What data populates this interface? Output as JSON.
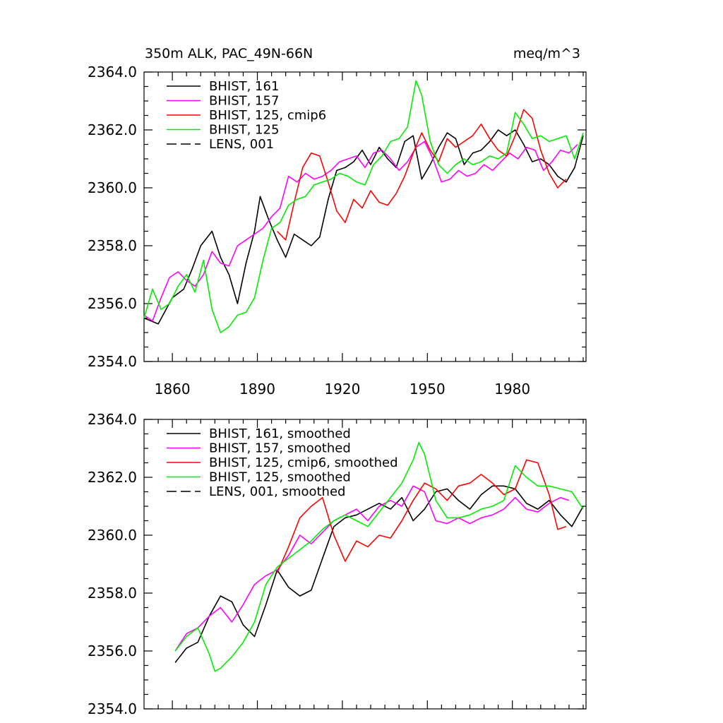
{
  "colors": {
    "black": "#000000",
    "magenta": "#ff00ff",
    "red": "#ff0000",
    "green": "#00ee00"
  },
  "chart_data": [
    {
      "type": "line",
      "title_left": "350m ALK, PAC_49N-66N",
      "title_right": "meq/m^3",
      "xlabel": "",
      "ylabel": "",
      "xlim": [
        1850,
        2006
      ],
      "ylim": [
        2354.0,
        2364.0
      ],
      "xticks": [
        1860,
        1890,
        1920,
        1950,
        1980
      ],
      "xtick_labels": [
        "1860",
        "1890",
        "1920",
        "1950",
        "1980"
      ],
      "yticks": [
        2354.0,
        2356.0,
        2358.0,
        2360.0,
        2362.0,
        2364.0
      ],
      "ytick_labels": [
        "2354.0",
        "2356.0",
        "2358.0",
        "2360.0",
        "2362.0",
        "2364.0"
      ],
      "legend_position": "top-left",
      "series": [
        {
          "name": "BHIST, 161",
          "color": "#000000",
          "dash": "solid",
          "x": [
            1850,
            1855,
            1860,
            1864,
            1867,
            1870,
            1874,
            1877,
            1880,
            1883,
            1886,
            1889,
            1891,
            1894,
            1897,
            1900,
            1903,
            1906,
            1909,
            1912,
            1915,
            1918,
            1921,
            1924,
            1927,
            1930,
            1933,
            1936,
            1939,
            1942,
            1945,
            1948,
            1951,
            1954,
            1957,
            1960,
            1963,
            1966,
            1969,
            1972,
            1975,
            1978,
            1981,
            1984,
            1987,
            1990,
            1993,
            1996,
            1999,
            2002,
            2005
          ],
          "values": [
            2355.5,
            2355.3,
            2356.2,
            2356.5,
            2357.2,
            2358.0,
            2358.5,
            2357.6,
            2357.0,
            2356.0,
            2357.4,
            2358.5,
            2359.7,
            2358.9,
            2358.2,
            2357.6,
            2358.4,
            2358.2,
            2358.0,
            2358.3,
            2359.6,
            2360.6,
            2360.7,
            2360.9,
            2361.3,
            2360.8,
            2361.4,
            2361.0,
            2360.7,
            2361.6,
            2361.8,
            2360.3,
            2360.8,
            2361.4,
            2361.9,
            2361.7,
            2360.8,
            2361.2,
            2361.3,
            2361.6,
            2362.0,
            2361.8,
            2362.0,
            2361.5,
            2360.9,
            2361.0,
            2360.8,
            2360.4,
            2360.2,
            2360.7,
            2361.8
          ]
        },
        {
          "name": "BHIST, 157",
          "color": "#ff00ff",
          "dash": "solid",
          "x": [
            1850,
            1853,
            1856,
            1859,
            1862,
            1865,
            1868,
            1871,
            1874,
            1877,
            1880,
            1883,
            1886,
            1889,
            1892,
            1895,
            1898,
            1901,
            1904,
            1907,
            1910,
            1913,
            1916,
            1919,
            1922,
            1925,
            1928,
            1931,
            1934,
            1937,
            1940,
            1943,
            1946,
            1949,
            1952,
            1955,
            1958,
            1961,
            1964,
            1967,
            1970,
            1973,
            1976,
            1979,
            1982,
            1985,
            1988,
            1991,
            1994,
            1997,
            2000,
            2003
          ],
          "values": [
            2355.6,
            2355.4,
            2356.2,
            2356.9,
            2357.1,
            2356.8,
            2356.6,
            2357.0,
            2357.8,
            2357.4,
            2357.3,
            2358.0,
            2358.2,
            2358.4,
            2358.6,
            2359.0,
            2359.3,
            2360.4,
            2360.2,
            2360.5,
            2360.3,
            2360.4,
            2360.6,
            2360.9,
            2361.0,
            2361.1,
            2360.7,
            2361.2,
            2361.3,
            2361.0,
            2360.6,
            2360.9,
            2361.4,
            2361.6,
            2361.0,
            2360.2,
            2360.3,
            2360.6,
            2360.4,
            2360.5,
            2360.8,
            2360.6,
            2360.9,
            2361.2,
            2361.0,
            2361.4,
            2361.3,
            2360.6,
            2360.9,
            2361.3,
            2361.2,
            2361.5
          ]
        },
        {
          "name": "BHIST, 125, cmip6",
          "color": "#ff0000",
          "dash": "solid",
          "x": [
            1897,
            1900,
            1903,
            1906,
            1909,
            1912,
            1915,
            1918,
            1921,
            1924,
            1927,
            1930,
            1933,
            1936,
            1939,
            1942,
            1945,
            1948,
            1951,
            1954,
            1957,
            1960,
            1963,
            1966,
            1969,
            1972,
            1975,
            1978,
            1981,
            1984,
            1987,
            1990,
            1993,
            1996,
            1999
          ],
          "values": [
            2358.5,
            2358.2,
            2359.5,
            2360.7,
            2361.2,
            2361.1,
            2360.2,
            2359.2,
            2358.8,
            2359.6,
            2359.3,
            2359.9,
            2359.5,
            2359.4,
            2359.8,
            2360.4,
            2361.2,
            2361.9,
            2361.3,
            2360.9,
            2361.7,
            2361.4,
            2361.6,
            2361.8,
            2362.2,
            2361.7,
            2361.3,
            2361.1,
            2361.8,
            2362.7,
            2362.4,
            2361.3,
            2360.5,
            2360.0,
            2360.3
          ]
        },
        {
          "name": "BHIST, 125",
          "color": "#00ee00",
          "dash": "solid",
          "x": [
            1850,
            1853,
            1856,
            1859,
            1862,
            1865,
            1868,
            1871,
            1874,
            1877,
            1880,
            1883,
            1886,
            1889,
            1892,
            1895,
            1898,
            1901,
            1904,
            1907,
            1910,
            1913,
            1916,
            1919,
            1922,
            1925,
            1928,
            1931,
            1934,
            1937,
            1940,
            1943,
            1946,
            1948,
            1951,
            1954,
            1957,
            1960,
            1963,
            1966,
            1969,
            1972,
            1975,
            1978,
            1981,
            1984,
            1987,
            1990,
            1993,
            1996,
            1999,
            2002,
            2005
          ],
          "values": [
            2355.5,
            2356.5,
            2355.8,
            2356.0,
            2356.6,
            2357.0,
            2356.4,
            2357.5,
            2355.8,
            2355.0,
            2355.2,
            2355.6,
            2355.7,
            2356.2,
            2357.5,
            2358.6,
            2358.8,
            2359.4,
            2359.6,
            2359.7,
            2360.1,
            2360.2,
            2360.3,
            2360.5,
            2360.4,
            2360.2,
            2360.1,
            2360.8,
            2361.1,
            2361.6,
            2361.7,
            2362.1,
            2363.7,
            2363.2,
            2361.6,
            2360.8,
            2360.5,
            2360.8,
            2361.0,
            2360.8,
            2360.9,
            2361.1,
            2361.0,
            2361.2,
            2362.6,
            2362.2,
            2361.7,
            2361.8,
            2361.6,
            2361.7,
            2361.8,
            2361.0,
            2361.9
          ]
        }
      ]
    },
    {
      "type": "line",
      "xlabel": "",
      "ylabel": "",
      "xlim": [
        1850,
        2006
      ],
      "ylim": [
        2354.0,
        2364.0
      ],
      "xticks": [
        1860,
        1890,
        1920,
        1950,
        1980
      ],
      "yticks": [
        2354.0,
        2356.0,
        2358.0,
        2360.0,
        2362.0,
        2364.0
      ],
      "ytick_labels": [
        "2354.0",
        "2356.0",
        "2358.0",
        "2360.0",
        "2362.0",
        "2364.0"
      ],
      "legend_position": "top-left",
      "series": [
        {
          "name": "BHIST, 161, smoothed",
          "color": "#000000",
          "dash": "solid",
          "x": [
            1861,
            1865,
            1869,
            1873,
            1877,
            1881,
            1885,
            1889,
            1893,
            1897,
            1901,
            1905,
            1909,
            1913,
            1917,
            1921,
            1925,
            1929,
            1933,
            1937,
            1941,
            1945,
            1949,
            1953,
            1957,
            1961,
            1965,
            1969,
            1973,
            1977,
            1981,
            1985,
            1989,
            1993,
            1997,
            2001,
            2005
          ],
          "values": [
            2355.6,
            2356.1,
            2356.3,
            2357.2,
            2357.9,
            2357.7,
            2356.9,
            2356.5,
            2357.6,
            2358.8,
            2358.2,
            2357.9,
            2358.1,
            2359.2,
            2360.3,
            2360.6,
            2360.7,
            2360.9,
            2361.1,
            2360.9,
            2361.3,
            2360.5,
            2360.9,
            2361.5,
            2361.6,
            2361.2,
            2360.9,
            2361.4,
            2361.7,
            2361.7,
            2361.6,
            2361.1,
            2360.9,
            2361.2,
            2360.7,
            2360.3,
            2361.0
          ]
        },
        {
          "name": "BHIST, 157, smoothed",
          "color": "#ff00ff",
          "dash": "solid",
          "x": [
            1861,
            1865,
            1869,
            1873,
            1877,
            1881,
            1885,
            1889,
            1893,
            1897,
            1901,
            1905,
            1909,
            1913,
            1917,
            1921,
            1925,
            1929,
            1933,
            1937,
            1941,
            1945,
            1949,
            1953,
            1957,
            1961,
            1965,
            1969,
            1973,
            1977,
            1981,
            1985,
            1989,
            1993,
            1997,
            2000
          ],
          "values": [
            2356.0,
            2356.6,
            2356.8,
            2357.2,
            2357.5,
            2357.0,
            2357.6,
            2358.3,
            2358.6,
            2358.8,
            2359.3,
            2360.0,
            2359.7,
            2360.1,
            2360.5,
            2360.7,
            2360.9,
            2360.5,
            2361.0,
            2361.2,
            2361.0,
            2361.7,
            2361.5,
            2360.5,
            2360.4,
            2360.6,
            2360.4,
            2360.6,
            2360.7,
            2360.9,
            2361.3,
            2360.9,
            2360.8,
            2361.1,
            2361.3,
            2361.2
          ]
        },
        {
          "name": "BHIST, 125, cmip6, smoothed",
          "color": "#ff0000",
          "dash": "solid",
          "x": [
            1897,
            1901,
            1905,
            1909,
            1913,
            1917,
            1921,
            1925,
            1929,
            1933,
            1937,
            1941,
            1945,
            1949,
            1953,
            1957,
            1961,
            1965,
            1969,
            1973,
            1977,
            1981,
            1985,
            1989,
            1993,
            1996,
            1999
          ],
          "values": [
            2358.7,
            2359.6,
            2360.6,
            2361.0,
            2361.3,
            2360.0,
            2359.1,
            2359.8,
            2359.6,
            2360.0,
            2359.9,
            2360.5,
            2361.2,
            2361.8,
            2361.6,
            2361.2,
            2361.7,
            2361.8,
            2362.1,
            2361.8,
            2361.4,
            2361.6,
            2362.6,
            2362.5,
            2361.4,
            2360.2,
            2360.3
          ]
        },
        {
          "name": "BHIST, 125, smoothed",
          "color": "#00ee00",
          "dash": "solid",
          "x": [
            1861,
            1865,
            1869,
            1873,
            1875,
            1877,
            1881,
            1885,
            1889,
            1893,
            1897,
            1901,
            1905,
            1909,
            1913,
            1917,
            1921,
            1925,
            1929,
            1933,
            1937,
            1941,
            1945,
            1947,
            1949,
            1953,
            1957,
            1961,
            1965,
            1969,
            1973,
            1977,
            1981,
            1985,
            1989,
            1993,
            1997,
            2001,
            2005
          ],
          "values": [
            2356.0,
            2356.5,
            2356.8,
            2355.9,
            2355.3,
            2355.4,
            2355.8,
            2356.3,
            2357.0,
            2358.3,
            2358.9,
            2359.2,
            2359.5,
            2359.8,
            2360.2,
            2360.5,
            2360.7,
            2360.5,
            2360.3,
            2360.8,
            2361.3,
            2361.8,
            2362.6,
            2363.2,
            2362.8,
            2361.2,
            2360.6,
            2360.6,
            2360.7,
            2360.9,
            2361.0,
            2361.2,
            2362.4,
            2362.0,
            2361.7,
            2361.7,
            2361.6,
            2361.5,
            2360.9
          ]
        }
      ]
    }
  ],
  "legend_top": [
    {
      "label": "BHIST, 161",
      "color": "#000000",
      "dash": false
    },
    {
      "label": "BHIST, 157",
      "color": "#ff00ff",
      "dash": false
    },
    {
      "label": "BHIST, 125, cmip6",
      "color": "#ff0000",
      "dash": false
    },
    {
      "label": "BHIST, 125",
      "color": "#00ee00",
      "dash": false
    },
    {
      "label": "LENS, 001",
      "color": "#000000",
      "dash": true
    }
  ],
  "legend_bottom": [
    {
      "label": "BHIST, 161, smoothed",
      "color": "#000000",
      "dash": false
    },
    {
      "label": "BHIST, 157, smoothed",
      "color": "#ff00ff",
      "dash": false
    },
    {
      "label": "BHIST, 125, cmip6, smoothed",
      "color": "#ff0000",
      "dash": false
    },
    {
      "label": "BHIST, 125, smoothed",
      "color": "#00ee00",
      "dash": false
    },
    {
      "label": "LENS, 001, smoothed",
      "color": "#000000",
      "dash": true
    }
  ]
}
